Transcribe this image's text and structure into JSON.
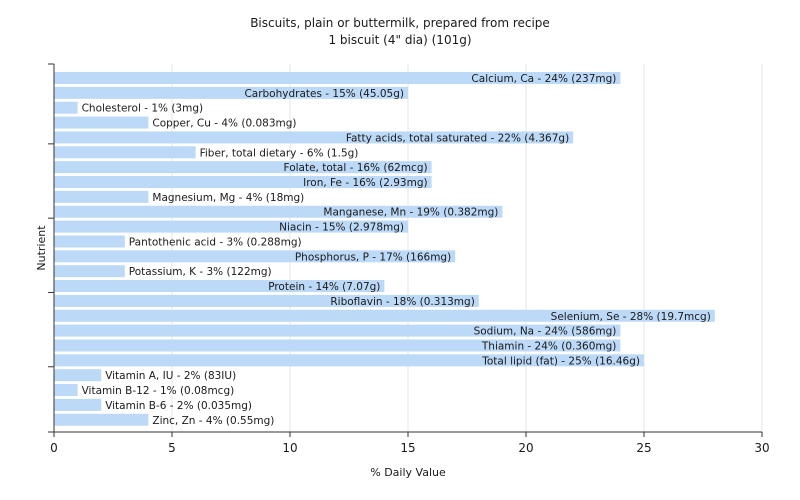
{
  "chart_data": {
    "type": "bar",
    "orientation": "horizontal",
    "title": "Biscuits, plain or buttermilk, prepared from recipe",
    "subtitle": "1 biscuit (4\" dia) (101g)",
    "xlabel": "% Daily Value",
    "ylabel": "Nutrient",
    "xlim": [
      0,
      30
    ],
    "xticks": [
      "0",
      "5",
      "10",
      "15",
      "20",
      "25",
      "30"
    ],
    "grid": true,
    "bar_color": "#bcd9f8",
    "grid_color": "#e6e6e6",
    "categories": [
      "Calcium, Ca",
      "Carbohydrates",
      "Cholesterol",
      "Copper, Cu",
      "Fatty acids, total saturated",
      "Fiber, total dietary",
      "Folate, total",
      "Iron, Fe",
      "Magnesium, Mg",
      "Manganese, Mn",
      "Niacin",
      "Pantothenic acid",
      "Phosphorus, P",
      "Potassium, K",
      "Protein",
      "Riboflavin",
      "Selenium, Se",
      "Sodium, Na",
      "Thiamin",
      "Total lipid (fat)",
      "Vitamin A, IU",
      "Vitamin B-12",
      "Vitamin B-6",
      "Zinc, Zn"
    ],
    "values": [
      24,
      15,
      1,
      4,
      22,
      6,
      16,
      16,
      4,
      19,
      15,
      3,
      17,
      3,
      14,
      18,
      28,
      24,
      24,
      25,
      2,
      1,
      2,
      4
    ],
    "labels": [
      "Calcium, Ca - 24% (237mg)",
      "Carbohydrates - 15% (45.05g)",
      "Cholesterol - 1% (3mg)",
      "Copper, Cu - 4% (0.083mg)",
      "Fatty acids, total saturated - 22% (4.367g)",
      "Fiber, total dietary - 6% (1.5g)",
      "Folate, total - 16% (62mcg)",
      "Iron, Fe - 16% (2.93mg)",
      "Magnesium, Mg - 4% (18mg)",
      "Manganese, Mn - 19% (0.382mg)",
      "Niacin - 15% (2.978mg)",
      "Pantothenic acid - 3% (0.288mg)",
      "Phosphorus, P - 17% (166mg)",
      "Potassium, K - 3% (122mg)",
      "Protein - 14% (7.07g)",
      "Riboflavin - 18% (0.313mg)",
      "Selenium, Se - 28% (19.7mcg)",
      "Sodium, Na - 24% (586mg)",
      "Thiamin - 24% (0.360mg)",
      "Total lipid (fat) - 25% (16.46g)",
      "Vitamin A, IU - 2% (83IU)",
      "Vitamin B-12 - 1% (0.08mcg)",
      "Vitamin B-6 - 2% (0.035mg)",
      "Zinc, Zn - 4% (0.55mg)"
    ]
  }
}
